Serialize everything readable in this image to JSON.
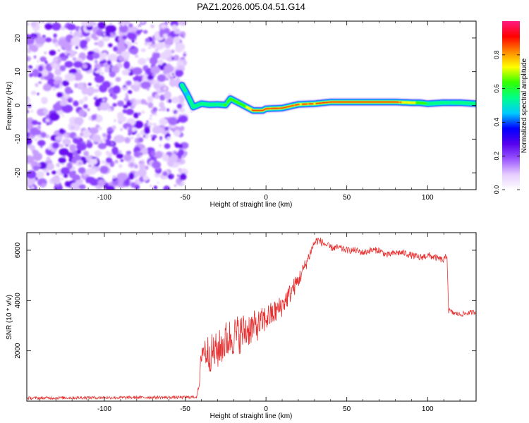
{
  "title": "PAZ1.2026.005.04.51.G14",
  "chart_data": [
    {
      "type": "heatmap",
      "title": "PAZ1.2026.005.04.51.G14",
      "xlabel": "Height of straight line (km)",
      "ylabel": "Frequency (Hz)",
      "xlim": [
        -148,
        130
      ],
      "ylim": [
        -25,
        25
      ],
      "xticks": [
        -100,
        -50,
        0,
        50,
        100
      ],
      "yticks": [
        -20,
        -10,
        0,
        10,
        20
      ],
      "xtick_labels": [
        "-100",
        "-50",
        "0",
        "50",
        "100"
      ],
      "ytick_labels": [
        "-20",
        "-10",
        "0",
        "10",
        "20"
      ],
      "noise_region": [
        -148,
        -50
      ],
      "ridge": {
        "x": [
          -52,
          -49,
          -45,
          -40,
          -35,
          -30,
          -25,
          -22,
          -18,
          -12,
          -8,
          -2,
          0,
          10,
          20,
          30,
          40,
          50,
          60,
          70,
          80,
          90,
          95,
          100,
          110,
          120,
          130
        ],
        "y": [
          6,
          3.5,
          -0.5,
          0.5,
          0.2,
          0.3,
          0.1,
          2,
          1,
          -0.5,
          -1.5,
          -1.5,
          -1,
          -0.8,
          0.3,
          0.5,
          1,
          1,
          1,
          1,
          1,
          0.8,
          0.8,
          0.5,
          0.8,
          0.8,
          0.5
        ],
        "amplitude": [
          0.6,
          0.4,
          0.45,
          0.45,
          0.55,
          0.5,
          0.55,
          0.55,
          0.6,
          0.8,
          0.95,
          0.97,
          0.98,
          0.98,
          0.9,
          0.92,
          0.97,
          0.98,
          0.98,
          0.98,
          0.97,
          0.8,
          0.7,
          0.5,
          0.45,
          0.45,
          0.4
        ]
      },
      "colorbar": {
        "label": "Normalized spectral amplitude",
        "range": [
          0,
          1
        ],
        "ticks": [
          0.0,
          0.2,
          0.4,
          0.6,
          0.8
        ],
        "tick_labels": [
          "0.0",
          "0.2",
          "0.4",
          "0.6",
          "0.8"
        ],
        "colors": [
          "#ffffff",
          "#e6ccff",
          "#9a55ff",
          "#5500ee",
          "#0000ff",
          "#00ccff",
          "#00ff88",
          "#33ff00",
          "#ffff00",
          "#ff8800",
          "#ff0000",
          "#ff1a80"
        ]
      }
    },
    {
      "type": "line",
      "xlabel": "Height of straight line (km)",
      "ylabel": "SNR (10 * v/v)",
      "xlim": [
        -148,
        130
      ],
      "ylim": [
        0,
        6700
      ],
      "xticks": [
        -100,
        -50,
        0,
        50,
        100
      ],
      "yticks": [
        2000,
        4000,
        6000
      ],
      "xtick_labels": [
        "-100",
        "-50",
        "0",
        "50",
        "100"
      ],
      "ytick_labels": [
        "2000",
        "4000",
        "6000"
      ],
      "color": "#e83030",
      "series": [
        {
          "name": "SNR",
          "x": [
            -148,
            -130,
            -110,
            -90,
            -70,
            -50,
            -43,
            -41,
            -40,
            -35,
            -30,
            -25,
            -20,
            -15,
            -10,
            -5,
            0,
            5,
            10,
            15,
            20,
            25,
            28,
            30,
            32,
            35,
            40,
            45,
            50,
            55,
            60,
            65,
            70,
            75,
            80,
            85,
            90,
            95,
            100,
            105,
            110,
            112,
            113,
            116,
            120,
            125,
            130
          ],
          "y": [
            120,
            130,
            140,
            140,
            150,
            150,
            170,
            700,
            2100,
            1900,
            2000,
            2400,
            2600,
            2700,
            2900,
            3000,
            3300,
            3500,
            3800,
            4300,
            4800,
            5500,
            6000,
            6300,
            6400,
            6300,
            6100,
            6100,
            6000,
            6000,
            5900,
            6000,
            6000,
            5800,
            5900,
            5900,
            5800,
            5700,
            5800,
            5700,
            5600,
            5800,
            3600,
            3500,
            3450,
            3500,
            3550
          ],
          "noise_amp": [
            60,
            60,
            60,
            60,
            60,
            60,
            60,
            120,
            700,
            750,
            750,
            800,
            800,
            800,
            700,
            600,
            550,
            500,
            450,
            400,
            350,
            250,
            200,
            200,
            180,
            160,
            140,
            140,
            130,
            130,
            130,
            130,
            130,
            130,
            130,
            130,
            140,
            140,
            140,
            130,
            130,
            130,
            120,
            100,
            100,
            100,
            100
          ]
        }
      ]
    }
  ]
}
